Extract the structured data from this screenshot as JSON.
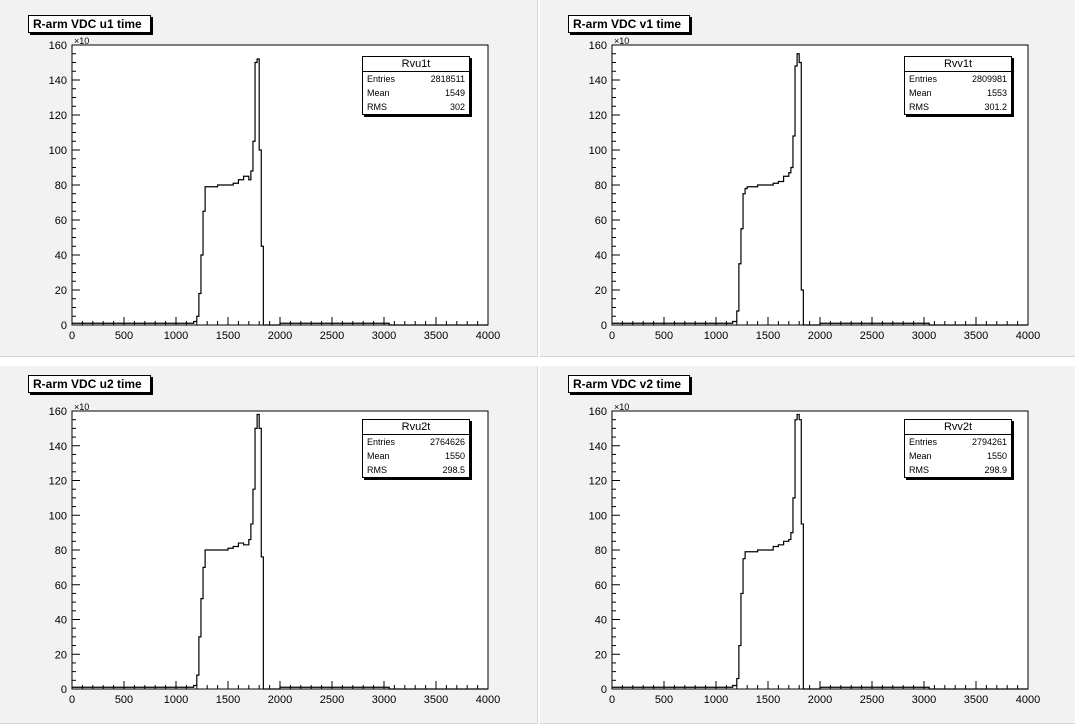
{
  "chart_data": [
    {
      "type": "histogram",
      "title": "R-arm VDC u1 time",
      "exponent_label": "×10",
      "xlim": [
        0,
        4000
      ],
      "ylim": [
        0,
        160
      ],
      "xticks": [
        "0",
        "500",
        "1000",
        "1500",
        "2000",
        "2500",
        "3000",
        "3500",
        "4000"
      ],
      "yticks": [
        "0",
        "20",
        "40",
        "60",
        "80",
        "100",
        "120",
        "140",
        "160"
      ],
      "stats": {
        "name": "Rvu1t",
        "entries_label": "Entries",
        "entries": "2818511",
        "mean_label": "Mean",
        "mean": "1549",
        "rms_label": "RMS",
        "rms": "302"
      },
      "x": [
        0,
        1100,
        1170,
        1200,
        1220,
        1240,
        1260,
        1280,
        1300,
        1400,
        1500,
        1550,
        1600,
        1650,
        1700,
        1720,
        1740,
        1760,
        1780,
        1800,
        1820,
        1840,
        1860,
        2000,
        2500,
        3000,
        3050,
        4000
      ],
      "values": [
        1,
        1,
        2,
        5,
        18,
        40,
        65,
        79,
        79,
        80,
        80,
        81,
        83,
        85,
        83,
        88,
        105,
        150,
        152,
        100,
        45,
        0,
        0,
        1,
        1,
        1,
        0,
        0
      ]
    },
    {
      "type": "histogram",
      "title": "R-arm VDC v1 time",
      "exponent_label": "×10",
      "xlim": [
        0,
        4000
      ],
      "ylim": [
        0,
        160
      ],
      "xticks": [
        "0",
        "500",
        "1000",
        "1500",
        "2000",
        "2500",
        "3000",
        "3500",
        "4000"
      ],
      "yticks": [
        "0",
        "20",
        "40",
        "60",
        "80",
        "100",
        "120",
        "140",
        "160"
      ],
      "stats": {
        "name": "Rvv1t",
        "entries_label": "Entries",
        "entries": "2809981",
        "mean_label": "Mean",
        "mean": "1553",
        "rms_label": "RMS",
        "rms": "301.2"
      },
      "x": [
        0,
        1100,
        1160,
        1200,
        1220,
        1240,
        1260,
        1280,
        1300,
        1400,
        1500,
        1550,
        1600,
        1650,
        1700,
        1720,
        1740,
        1760,
        1780,
        1800,
        1820,
        1840,
        2000,
        2500,
        3000,
        3050,
        4000
      ],
      "values": [
        1,
        1,
        2,
        8,
        35,
        55,
        75,
        78,
        79,
        80,
        80,
        81,
        82,
        85,
        87,
        90,
        108,
        148,
        155,
        150,
        20,
        0,
        1,
        1,
        1,
        0,
        0
      ]
    },
    {
      "type": "histogram",
      "title": "R-arm VDC u2 time",
      "exponent_label": "×10",
      "xlim": [
        0,
        4000
      ],
      "ylim": [
        0,
        160
      ],
      "xticks": [
        "0",
        "500",
        "1000",
        "1500",
        "2000",
        "2500",
        "3000",
        "3500",
        "4000"
      ],
      "yticks": [
        "0",
        "20",
        "40",
        "60",
        "80",
        "100",
        "120",
        "140",
        "160"
      ],
      "stats": {
        "name": "Rvu2t",
        "entries_label": "Entries",
        "entries": "2764626",
        "mean_label": "Mean",
        "mean": "1550",
        "rms_label": "RMS",
        "rms": "298.5"
      },
      "x": [
        0,
        1100,
        1170,
        1200,
        1220,
        1240,
        1260,
        1280,
        1300,
        1400,
        1500,
        1550,
        1600,
        1650,
        1700,
        1720,
        1740,
        1760,
        1780,
        1800,
        1820,
        1840,
        2000,
        2500,
        3000,
        3050,
        4000
      ],
      "values": [
        1,
        1,
        2,
        8,
        30,
        52,
        70,
        80,
        80,
        80,
        81,
        82,
        84,
        83,
        86,
        95,
        115,
        150,
        158,
        150,
        76,
        0,
        1,
        1,
        1,
        0,
        0
      ]
    },
    {
      "type": "histogram",
      "title": "R-arm VDC v2 time",
      "exponent_label": "×10",
      "xlim": [
        0,
        4000
      ],
      "ylim": [
        0,
        160
      ],
      "xticks": [
        "0",
        "500",
        "1000",
        "1500",
        "2000",
        "2500",
        "3000",
        "3500",
        "4000"
      ],
      "yticks": [
        "0",
        "20",
        "40",
        "60",
        "80",
        "100",
        "120",
        "140",
        "160"
      ],
      "stats": {
        "name": "Rvv2t",
        "entries_label": "Entries",
        "entries": "2794261",
        "mean_label": "Mean",
        "mean": "1550",
        "rms_label": "RMS",
        "rms": "298.9"
      },
      "x": [
        0,
        1100,
        1160,
        1200,
        1220,
        1240,
        1260,
        1280,
        1300,
        1400,
        1500,
        1550,
        1600,
        1650,
        1700,
        1720,
        1740,
        1760,
        1780,
        1800,
        1820,
        1840,
        2000,
        2500,
        3000,
        3050,
        4000
      ],
      "values": [
        1,
        1,
        2,
        6,
        25,
        55,
        75,
        79,
        79,
        80,
        80,
        82,
        83,
        85,
        86,
        90,
        110,
        155,
        158,
        155,
        95,
        0,
        1,
        1,
        1,
        0,
        0
      ]
    }
  ]
}
